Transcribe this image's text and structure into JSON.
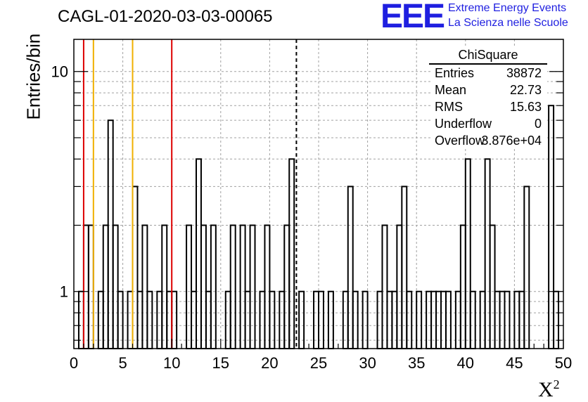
{
  "chart_data": {
    "type": "bar",
    "title": "CAGL-01-2020-03-03-00065",
    "xlabel": "X",
    "xlabel_sup": "2",
    "ylabel": "Entries/bin",
    "xlim": [
      0,
      50
    ],
    "ylim": [
      0.55,
      14
    ],
    "yscale": "log",
    "grid": true,
    "bin_width": 0.5,
    "x_ticks": [
      "0",
      "5",
      "10",
      "15",
      "20",
      "25",
      "30",
      "35",
      "40",
      "45",
      "50"
    ],
    "y_ticks": [
      "1",
      "10"
    ],
    "bin_starts": [
      0.5,
      1.0,
      1.5,
      2.5,
      3.0,
      3.5,
      4.0,
      4.5,
      5.5,
      6.0,
      6.5,
      7.0,
      7.5,
      8.5,
      9.0,
      9.5,
      10.0,
      11.5,
      12.0,
      12.5,
      13.0,
      13.5,
      14.0,
      15.5,
      16.0,
      17.0,
      17.5,
      18.0,
      19.0,
      19.5,
      20.0,
      21.0,
      21.5,
      22.0,
      23.0,
      24.5,
      25.0,
      26.0,
      27.5,
      28.0,
      28.5,
      29.5,
      31.0,
      31.5,
      32.0,
      32.5,
      33.0,
      33.5,
      34.0,
      35.0,
      36.0,
      36.5,
      37.0,
      37.5,
      38.0,
      39.0,
      39.5,
      40.0,
      40.5,
      41.5,
      42.0,
      42.5,
      43.0,
      43.5,
      44.0,
      45.0,
      45.5,
      46.0,
      48.5,
      49.0
    ],
    "counts": [
      1,
      2,
      2,
      1,
      2,
      6,
      2,
      1,
      1,
      3,
      1,
      2,
      1,
      1,
      2,
      1,
      1,
      2,
      1,
      4,
      2,
      1,
      2,
      1,
      2,
      2,
      1,
      2,
      1,
      2,
      1,
      1,
      2,
      4,
      1,
      1,
      1,
      1,
      1,
      3,
      1,
      1,
      1,
      2,
      1,
      1,
      2,
      3,
      1,
      1,
      1,
      1,
      1,
      1,
      1,
      1,
      2,
      4,
      1,
      1,
      4,
      2,
      1,
      1,
      1,
      1,
      1,
      3,
      7,
      1
    ],
    "vlines": [
      {
        "x": 1,
        "color": "#dd0000",
        "style": "solid"
      },
      {
        "x": 2,
        "color": "#f0b000",
        "style": "solid"
      },
      {
        "x": 6,
        "color": "#f0b000",
        "style": "solid"
      },
      {
        "x": 10,
        "color": "#dd0000",
        "style": "solid"
      },
      {
        "x": 22.73,
        "color": "#000000",
        "style": "dashed"
      }
    ],
    "stats": {
      "name": "ChiSquare",
      "rows": [
        {
          "key": "Entries",
          "value": "38872"
        },
        {
          "key": "Mean",
          "value": "22.73"
        },
        {
          "key": "RMS",
          "value": "15.63"
        },
        {
          "key": "Underflow",
          "value": "0"
        },
        {
          "key": "Overflow",
          "value": "3.876e+04"
        }
      ]
    }
  },
  "logo": {
    "mark": "EEE",
    "line1": "Extreme Energy Events",
    "line2": "La Scienza nelle Scuole",
    "color": "#1f1fe0"
  }
}
